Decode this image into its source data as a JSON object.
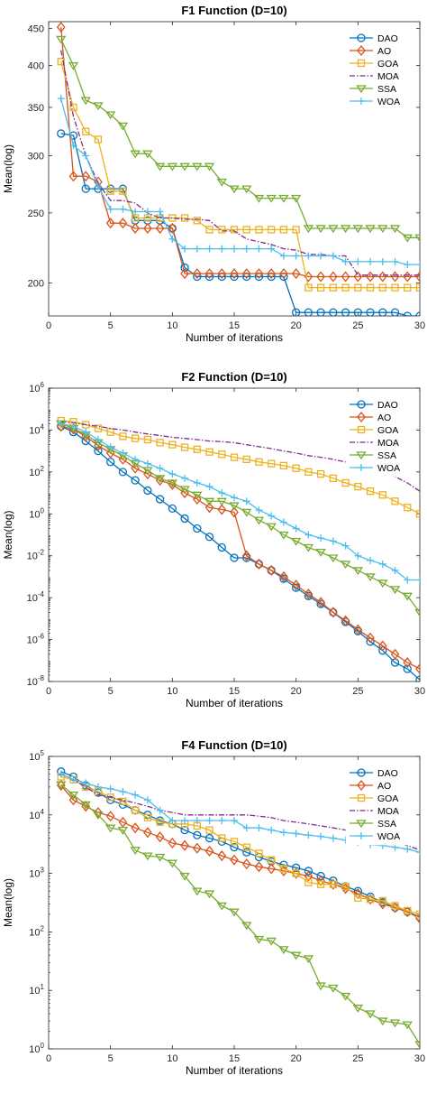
{
  "colors": {
    "DAO": "#0072BD",
    "AO": "#D95319",
    "GOA": "#EDB120",
    "MOA": "#7E2F8E",
    "SSA": "#77AC30",
    "WOA": "#4DBEEE"
  },
  "chart_data": [
    {
      "type": "line",
      "title": "F1 Function (D=10)",
      "xlabel": "Number of iterations",
      "ylabel": "Mean(log)",
      "xlim": [
        0,
        30
      ],
      "ylim": [
        180,
        460
      ],
      "yscale": "log",
      "xticks": [
        0,
        5,
        10,
        15,
        20,
        25,
        30
      ],
      "yticks": [
        {
          "value": 200,
          "label": "200"
        },
        {
          "value": 250,
          "label": "250"
        },
        {
          "value": 300,
          "label": "300"
        },
        {
          "value": 350,
          "label": "350"
        },
        {
          "value": 400,
          "label": "400"
        },
        {
          "value": 450,
          "label": "450"
        }
      ],
      "legend_position": "top-right",
      "x": [
        1,
        2,
        3,
        4,
        5,
        6,
        7,
        8,
        9,
        10,
        11,
        12,
        13,
        14,
        15,
        16,
        17,
        18,
        19,
        20,
        21,
        22,
        23,
        24,
        25,
        26,
        27,
        28,
        29,
        30
      ],
      "series": [
        {
          "name": "DAO",
          "marker": "circle",
          "values": [
            322,
            320,
            270,
            270,
            270,
            270,
            244,
            244,
            244,
            238,
            210,
            204,
            204,
            204,
            204,
            204,
            204,
            204,
            204,
            182,
            182,
            182,
            182,
            182,
            182,
            182,
            182,
            182,
            180,
            180
          ]
        },
        {
          "name": "AO",
          "marker": "diamond",
          "values": [
            452,
            281,
            281,
            276,
            242,
            242,
            238,
            238,
            238,
            238,
            206,
            206,
            206,
            206,
            206,
            206,
            206,
            206,
            206,
            206,
            204,
            204,
            204,
            204,
            204,
            204,
            204,
            204,
            204,
            204
          ]
        },
        {
          "name": "GOA",
          "marker": "square",
          "values": [
            405,
            350,
            324,
            316,
            268,
            268,
            246,
            246,
            246,
            246,
            246,
            244,
            237,
            237,
            237,
            237,
            237,
            237,
            237,
            237,
            197,
            197,
            197,
            197,
            197,
            197,
            197,
            197,
            197,
            197
          ]
        },
        {
          "name": "MOA",
          "marker": "none",
          "values": [
            420,
            340,
            300,
            275,
            260,
            260,
            258,
            250,
            246,
            246,
            245,
            245,
            244,
            236,
            236,
            230,
            228,
            226,
            223,
            222,
            219,
            219,
            218,
            218,
            205,
            205,
            205,
            205,
            205,
            205
          ]
        },
        {
          "name": "SSA",
          "marker": "triangle-down",
          "values": [
            435,
            400,
            358,
            352,
            342,
            330,
            302,
            302,
            290,
            290,
            290,
            290,
            290,
            276,
            270,
            270,
            262,
            262,
            262,
            262,
            238,
            238,
            238,
            238,
            238,
            238,
            238,
            238,
            231,
            231
          ]
        },
        {
          "name": "WOA",
          "marker": "plus",
          "values": [
            360,
            310,
            300,
            272,
            253,
            253,
            251,
            251,
            251,
            230,
            223,
            223,
            223,
            223,
            223,
            223,
            223,
            223,
            218,
            218,
            218,
            218,
            218,
            214,
            214,
            214,
            214,
            214,
            212,
            212
          ]
        }
      ]
    },
    {
      "type": "line",
      "title": "F2 Function (D=10)",
      "xlabel": "Number of iterations",
      "ylabel": "Mean(log)",
      "xlim": [
        0,
        30
      ],
      "ylim": [
        1e-08,
        1000000.0
      ],
      "yscale": "log",
      "xticks": [
        0,
        5,
        10,
        15,
        20,
        25,
        30
      ],
      "yticks": [
        {
          "value": 1e-08,
          "base": "10",
          "exp": "-8"
        },
        {
          "value": 1e-06,
          "base": "10",
          "exp": "-6"
        },
        {
          "value": 0.0001,
          "base": "10",
          "exp": "-4"
        },
        {
          "value": 0.01,
          "base": "10",
          "exp": "-2"
        },
        {
          "value": 1,
          "base": "10",
          "exp": "0"
        },
        {
          "value": 100,
          "base": "10",
          "exp": "2"
        },
        {
          "value": 10000,
          "base": "10",
          "exp": "4"
        },
        {
          "value": 1000000,
          "base": "10",
          "exp": "6"
        }
      ],
      "legend_position": "top-right",
      "x": [
        1,
        2,
        3,
        4,
        5,
        6,
        7,
        8,
        9,
        10,
        11,
        12,
        13,
        14,
        15,
        16,
        17,
        18,
        19,
        20,
        21,
        22,
        23,
        24,
        25,
        26,
        27,
        28,
        29,
        30
      ],
      "series": [
        {
          "name": "DAO",
          "marker": "circle",
          "values": [
            15000,
            8000,
            3000,
            1000,
            300,
            100,
            40,
            13,
            5,
            1.8,
            0.6,
            0.2,
            0.08,
            0.025,
            0.008,
            0.008,
            0.004,
            0.002,
            0.0008,
            0.0003,
            0.00012,
            5e-05,
            2e-05,
            7e-06,
            2.5e-06,
            8e-07,
            3e-07,
            8e-08,
            4e-08,
            1.2e-08
          ]
        },
        {
          "name": "AO",
          "marker": "diamond",
          "values": [
            15000,
            11000,
            5000,
            1800,
            800,
            400,
            150,
            80,
            40,
            25,
            10,
            5,
            2,
            1.6,
            1.2,
            0.01,
            0.004,
            0.002,
            0.001,
            0.0004,
            0.00015,
            6e-05,
            2e-05,
            8e-06,
            3e-06,
            1.2e-06,
            5e-07,
            2e-07,
            8e-08,
            4e-08
          ]
        },
        {
          "name": "GOA",
          "marker": "square",
          "values": [
            28000,
            25000,
            18000,
            12000,
            8000,
            5000,
            4000,
            3500,
            2500,
            2000,
            1500,
            1200,
            900,
            700,
            500,
            400,
            300,
            250,
            200,
            150,
            100,
            80,
            50,
            30,
            20,
            12,
            8,
            4,
            2,
            1
          ]
        },
        {
          "name": "MOA",
          "marker": "none",
          "values": [
            25000,
            22000,
            18000,
            15000,
            12000,
            10000,
            8000,
            6500,
            5500,
            4500,
            4000,
            3500,
            3000,
            2800,
            2500,
            2000,
            1600,
            1300,
            1000,
            800,
            600,
            500,
            400,
            300,
            200,
            150,
            100,
            60,
            30,
            12
          ]
        },
        {
          "name": "SSA",
          "marker": "triangle-down",
          "values": [
            20000,
            12000,
            6000,
            2500,
            1200,
            600,
            250,
            120,
            50,
            30,
            15,
            8,
            4,
            4,
            2.5,
            1.2,
            0.5,
            0.25,
            0.1,
            0.05,
            0.025,
            0.015,
            0.008,
            0.004,
            0.002,
            0.001,
            0.0005,
            0.00025,
            0.00012,
            2e-05
          ]
        },
        {
          "name": "WOA",
          "marker": "plus",
          "values": [
            20000,
            15000,
            8000,
            3500,
            1500,
            800,
            400,
            250,
            150,
            80,
            50,
            30,
            20,
            10,
            6,
            4,
            1.5,
            0.8,
            0.4,
            0.2,
            0.1,
            0.07,
            0.05,
            0.03,
            0.01,
            0.006,
            0.004,
            0.002,
            0.0007,
            0.0007
          ]
        }
      ]
    },
    {
      "type": "line",
      "title": "F4 Function (D=10)",
      "xlabel": "Number of iterations",
      "ylabel": "Mean(log)",
      "xlim": [
        0,
        30
      ],
      "ylim": [
        1,
        100000
      ],
      "yscale": "log",
      "xticks": [
        0,
        5,
        10,
        15,
        20,
        25,
        30
      ],
      "yticks": [
        {
          "value": 1,
          "base": "10",
          "exp": "0"
        },
        {
          "value": 10,
          "base": "10",
          "exp": "1"
        },
        {
          "value": 100,
          "base": "10",
          "exp": "2"
        },
        {
          "value": 1000,
          "base": "10",
          "exp": "3"
        },
        {
          "value": 10000,
          "base": "10",
          "exp": "4"
        },
        {
          "value": 100000,
          "base": "10",
          "exp": "5"
        }
      ],
      "legend_position": "top-right",
      "x": [
        1,
        2,
        3,
        4,
        5,
        6,
        7,
        8,
        9,
        10,
        11,
        12,
        13,
        14,
        15,
        16,
        17,
        18,
        19,
        20,
        21,
        22,
        23,
        24,
        25,
        26,
        27,
        28,
        29,
        30
      ],
      "series": [
        {
          "name": "DAO",
          "marker": "circle",
          "values": [
            55000,
            45000,
            32000,
            24000,
            18000,
            15000,
            12000,
            10000,
            8000,
            7000,
            5500,
            4500,
            4000,
            3500,
            2800,
            2300,
            1900,
            1600,
            1400,
            1250,
            1100,
            900,
            750,
            600,
            500,
            400,
            320,
            260,
            220,
            180
          ]
        },
        {
          "name": "AO",
          "marker": "diamond",
          "values": [
            32000,
            18000,
            14000,
            11000,
            9500,
            7500,
            6000,
            5000,
            4200,
            3300,
            3000,
            2700,
            2400,
            2000,
            1700,
            1450,
            1300,
            1200,
            1100,
            1000,
            900,
            750,
            650,
            550,
            450,
            360,
            300,
            260,
            220,
            170
          ]
        },
        {
          "name": "GOA",
          "marker": "square",
          "values": [
            45000,
            40000,
            30000,
            25000,
            20000,
            17000,
            12000,
            9000,
            7500,
            7000,
            7000,
            6500,
            5500,
            4000,
            3500,
            2800,
            2200,
            1700,
            1200,
            1000,
            700,
            650,
            650,
            600,
            380,
            360,
            340,
            280,
            230,
            200
          ]
        },
        {
          "name": "MOA",
          "marker": "none",
          "values": [
            50000,
            40000,
            30000,
            22000,
            20000,
            18000,
            16000,
            14000,
            12000,
            11000,
            10000,
            10000,
            10000,
            10000,
            10000,
            10000,
            9500,
            9000,
            8000,
            7500,
            7000,
            6500,
            6000,
            5500,
            5000,
            4500,
            4000,
            3500,
            3000,
            2500
          ]
        },
        {
          "name": "SSA",
          "marker": "triangle-down",
          "values": [
            33000,
            22000,
            15000,
            10000,
            6000,
            5500,
            2500,
            2000,
            1900,
            1500,
            900,
            500,
            450,
            280,
            220,
            130,
            75,
            70,
            50,
            40,
            35,
            12,
            11,
            8,
            5,
            4,
            3,
            2.8,
            2.6,
            1.2
          ]
        },
        {
          "name": "WOA",
          "marker": "plus",
          "values": [
            50000,
            40000,
            35000,
            30000,
            28000,
            25000,
            22000,
            18000,
            12000,
            8000,
            8000,
            8000,
            8000,
            8000,
            8000,
            6000,
            6000,
            5500,
            5000,
            4800,
            4500,
            4300,
            4000,
            3700,
            3400,
            3100,
            3000,
            2800,
            2600,
            2300
          ]
        }
      ]
    }
  ]
}
